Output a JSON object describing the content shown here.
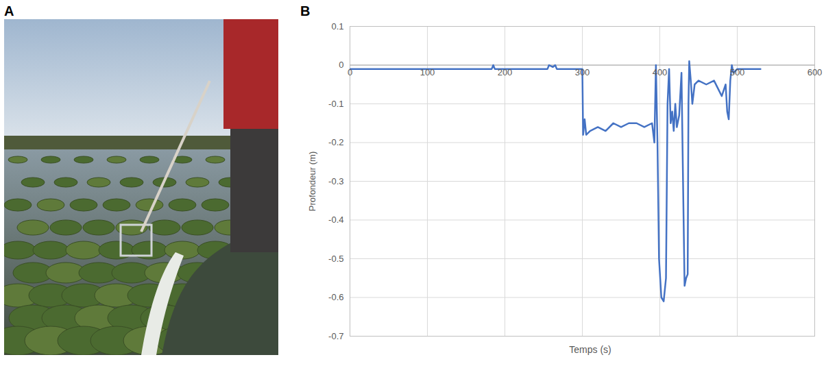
{
  "panel_labels": [
    "A",
    "B"
  ],
  "chart_data": {
    "type": "line",
    "x_label": "Temps (s)",
    "y_label": "Profondeur (m)",
    "x": [
      0,
      183,
      185,
      187,
      255,
      257,
      262,
      265,
      267,
      300,
      301,
      303,
      305,
      310,
      320,
      330,
      340,
      350,
      360,
      370,
      380,
      390,
      393,
      395,
      397,
      399,
      402,
      405,
      408,
      410,
      412,
      414,
      416,
      418,
      420,
      422,
      425,
      428,
      430,
      432,
      434,
      436,
      437,
      438,
      440,
      442,
      445,
      450,
      460,
      470,
      475,
      480,
      485,
      487,
      489,
      491,
      493,
      495,
      500,
      510,
      520,
      530
    ],
    "values": [
      -0.01,
      -0.01,
      0,
      -0.01,
      -0.01,
      0,
      -0.005,
      0,
      -0.01,
      -0.01,
      -0.18,
      -0.14,
      -0.18,
      -0.17,
      -0.16,
      -0.17,
      -0.15,
      -0.16,
      -0.15,
      -0.15,
      -0.16,
      -0.15,
      -0.2,
      0,
      -0.2,
      -0.5,
      -0.6,
      -0.61,
      -0.55,
      -0.1,
      -0.01,
      -0.15,
      -0.12,
      -0.17,
      -0.1,
      -0.16,
      -0.13,
      -0.02,
      -0.3,
      -0.57,
      -0.55,
      -0.54,
      -0.1,
      0.01,
      -0.04,
      -0.1,
      -0.05,
      -0.04,
      -0.05,
      -0.04,
      -0.06,
      -0.08,
      -0.05,
      -0.12,
      -0.14,
      -0.04,
      0,
      -0.02,
      -0.01,
      -0.01,
      -0.01,
      -0.01
    ],
    "color": "#4472c4",
    "xlim": [
      0,
      600
    ],
    "xticks": [
      0,
      100,
      200,
      300,
      400,
      500,
      600
    ],
    "ylim": [
      -0.7,
      0.1
    ],
    "yticks": [
      -0.7,
      -0.6,
      -0.5,
      -0.4,
      -0.3,
      -0.2,
      -0.1,
      0,
      0.1
    ],
    "grid": true
  }
}
